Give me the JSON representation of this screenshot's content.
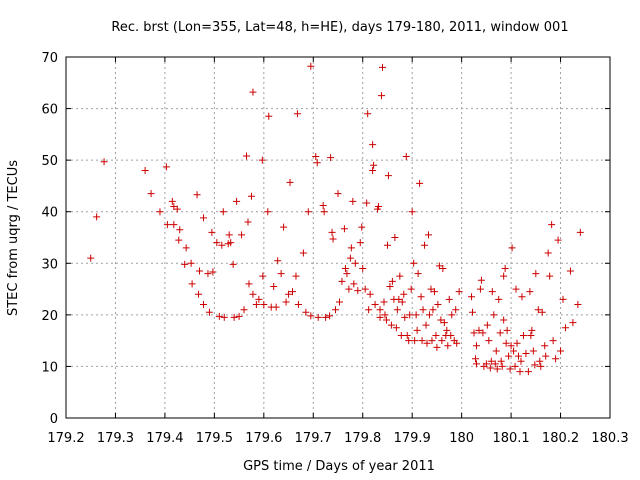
{
  "chart_data": {
    "type": "scatter",
    "title": "Rec. brst (Lon=355, Lat=48, h=HE), days 179-180, 2011, window 001",
    "xlabel": "GPS time / Days of year 2011",
    "ylabel": "STEC from uqrg / TECUs",
    "xlim": [
      179.2,
      180.3
    ],
    "ylim": [
      0,
      70
    ],
    "xticks": [
      179.2,
      179.3,
      179.4,
      179.5,
      179.6,
      179.7,
      179.8,
      179.9,
      180,
      180.1,
      180.2,
      180.3
    ],
    "xtick_labels": [
      "179.2",
      "179.3",
      "179.4",
      "179.5",
      "179.6",
      "179.7",
      "179.8",
      "179.9",
      "180",
      "180.1",
      "180.2",
      "180.3"
    ],
    "yticks": [
      0,
      10,
      20,
      30,
      40,
      50,
      60,
      70
    ],
    "ytick_labels": [
      "0",
      "10",
      "20",
      "30",
      "40",
      "50",
      "60",
      "70"
    ],
    "grid": true,
    "marker": "+",
    "color": "#cc0000",
    "series": [
      {
        "points": [
          [
            179.25,
            31
          ],
          [
            179.262,
            39
          ],
          [
            179.277,
            49.7
          ],
          [
            179.36,
            48
          ],
          [
            179.372,
            43.5
          ],
          [
            179.39,
            40
          ],
          [
            179.403,
            48.7
          ],
          [
            179.405,
            37.5
          ],
          [
            179.415,
            42
          ],
          [
            179.418,
            37.5
          ],
          [
            179.418,
            41
          ],
          [
            179.425,
            40.5
          ],
          [
            179.428,
            34.5
          ],
          [
            179.43,
            36.5
          ],
          [
            179.443,
            33
          ],
          [
            179.44,
            29.8
          ],
          [
            179.453,
            30
          ],
          [
            179.455,
            26
          ],
          [
            179.465,
            43.3
          ],
          [
            179.468,
            24
          ],
          [
            179.47,
            28.5
          ],
          [
            179.478,
            38.8
          ],
          [
            179.478,
            22
          ],
          [
            179.487,
            28
          ],
          [
            179.49,
            20.5
          ],
          [
            179.495,
            36
          ],
          [
            179.497,
            28.3
          ],
          [
            179.505,
            34
          ],
          [
            179.51,
            19.7
          ],
          [
            179.515,
            33.5
          ],
          [
            179.518,
            40
          ],
          [
            179.52,
            19.5
          ],
          [
            179.528,
            33.8
          ],
          [
            179.53,
            35.5
          ],
          [
            179.533,
            34
          ],
          [
            179.538,
            29.8
          ],
          [
            179.54,
            19.5
          ],
          [
            179.545,
            42
          ],
          [
            179.55,
            19.7
          ],
          [
            179.555,
            35.5
          ],
          [
            179.56,
            21
          ],
          [
            179.565,
            50.8
          ],
          [
            179.568,
            38
          ],
          [
            179.57,
            26
          ],
          [
            179.575,
            43
          ],
          [
            179.578,
            63.2
          ],
          [
            179.578,
            24
          ],
          [
            179.585,
            22
          ],
          [
            179.59,
            23
          ],
          [
            179.597,
            50
          ],
          [
            179.598,
            27.5
          ],
          [
            179.6,
            22
          ],
          [
            179.608,
            40
          ],
          [
            179.61,
            58.5
          ],
          [
            179.615,
            21.5
          ],
          [
            179.62,
            25.5
          ],
          [
            179.625,
            21.5
          ],
          [
            179.628,
            30.5
          ],
          [
            179.635,
            28
          ],
          [
            179.64,
            37
          ],
          [
            179.645,
            22.5
          ],
          [
            179.65,
            24
          ],
          [
            179.653,
            45.7
          ],
          [
            179.658,
            24.5
          ],
          [
            179.665,
            27.5
          ],
          [
            179.668,
            59
          ],
          [
            179.67,
            22
          ],
          [
            179.68,
            32
          ],
          [
            179.685,
            20.5
          ],
          [
            179.69,
            40
          ],
          [
            179.695,
            68.2
          ],
          [
            179.695,
            19.8
          ],
          [
            179.705,
            50.7
          ],
          [
            179.708,
            49.5
          ],
          [
            179.71,
            19.5
          ],
          [
            179.72,
            41.2
          ],
          [
            179.722,
            40
          ],
          [
            179.725,
            19.5
          ],
          [
            179.733,
            19.8
          ],
          [
            179.735,
            50.5
          ],
          [
            179.738,
            36
          ],
          [
            179.74,
            34.7
          ],
          [
            179.745,
            21
          ],
          [
            179.75,
            43.5
          ],
          [
            179.753,
            22.5
          ],
          [
            179.758,
            26.5
          ],
          [
            179.763,
            36.7
          ],
          [
            179.765,
            29
          ],
          [
            179.768,
            28
          ],
          [
            179.772,
            25
          ],
          [
            179.775,
            31
          ],
          [
            179.777,
            33
          ],
          [
            179.78,
            42
          ],
          [
            179.782,
            26
          ],
          [
            179.785,
            30
          ],
          [
            179.79,
            24.7
          ],
          [
            179.795,
            34
          ],
          [
            179.798,
            37
          ],
          [
            179.8,
            29
          ],
          [
            179.805,
            25
          ],
          [
            179.808,
            41.7
          ],
          [
            179.81,
            59
          ],
          [
            179.812,
            21
          ],
          [
            179.815,
            24
          ],
          [
            179.82,
            48
          ],
          [
            179.82,
            53
          ],
          [
            179.822,
            49
          ],
          [
            179.825,
            22
          ],
          [
            179.83,
            40.5
          ],
          [
            179.832,
            41
          ],
          [
            179.835,
            21
          ],
          [
            179.835,
            19.5
          ],
          [
            179.838,
            62.5
          ],
          [
            179.84,
            68
          ],
          [
            179.843,
            22.5
          ],
          [
            179.845,
            20
          ],
          [
            179.848,
            19
          ],
          [
            179.85,
            33.5
          ],
          [
            179.852,
            47
          ],
          [
            179.855,
            25.5
          ],
          [
            179.858,
            18
          ],
          [
            179.86,
            26.5
          ],
          [
            179.863,
            23
          ],
          [
            179.865,
            35
          ],
          [
            179.868,
            17.5
          ],
          [
            179.87,
            21
          ],
          [
            179.873,
            23
          ],
          [
            179.875,
            27.5
          ],
          [
            179.878,
            16
          ],
          [
            179.88,
            22.5
          ],
          [
            179.883,
            24
          ],
          [
            179.885,
            19.5
          ],
          [
            179.888,
            50.7
          ],
          [
            179.89,
            16
          ],
          [
            179.893,
            15
          ],
          [
            179.895,
            20
          ],
          [
            179.898,
            25
          ],
          [
            179.9,
            40
          ],
          [
            179.903,
            30
          ],
          [
            179.905,
            15
          ],
          [
            179.908,
            20
          ],
          [
            179.91,
            17
          ],
          [
            179.912,
            28
          ],
          [
            179.915,
            45.5
          ],
          [
            179.918,
            23.5
          ],
          [
            179.92,
            15
          ],
          [
            179.922,
            21
          ],
          [
            179.925,
            33.5
          ],
          [
            179.928,
            18
          ],
          [
            179.93,
            14.5
          ],
          [
            179.933,
            35.5
          ],
          [
            179.935,
            20
          ],
          [
            179.938,
            25
          ],
          [
            179.94,
            15
          ],
          [
            179.942,
            21
          ],
          [
            179.945,
            24.5
          ],
          [
            179.948,
            16
          ],
          [
            179.95,
            13.7
          ],
          [
            179.952,
            22
          ],
          [
            179.955,
            29.5
          ],
          [
            179.958,
            19
          ],
          [
            179.96,
            15
          ],
          [
            179.962,
            29
          ],
          [
            179.965,
            18.5
          ],
          [
            179.968,
            16
          ],
          [
            179.97,
            17
          ],
          [
            179.972,
            14
          ],
          [
            179.975,
            23
          ],
          [
            179.978,
            16
          ],
          [
            179.98,
            20
          ],
          [
            179.985,
            15
          ],
          [
            179.988,
            21
          ],
          [
            179.99,
            14.5
          ],
          [
            179.995,
            24.5
          ],
          [
            180.02,
            23.5
          ],
          [
            180.022,
            20.5
          ],
          [
            180.025,
            16.5
          ],
          [
            180.028,
            11.5
          ],
          [
            180.03,
            14
          ],
          [
            180.03,
            10.5
          ],
          [
            180.035,
            17
          ],
          [
            180.038,
            25
          ],
          [
            180.04,
            26.7
          ],
          [
            180.043,
            16.5
          ],
          [
            180.045,
            10
          ],
          [
            180.05,
            10.5
          ],
          [
            180.052,
            18
          ],
          [
            180.055,
            15
          ],
          [
            180.058,
            9.7
          ],
          [
            180.06,
            11
          ],
          [
            180.062,
            24.5
          ],
          [
            180.065,
            20
          ],
          [
            180.068,
            10.5
          ],
          [
            180.07,
            13
          ],
          [
            180.072,
            9.5
          ],
          [
            180.075,
            23
          ],
          [
            180.078,
            16.5
          ],
          [
            180.08,
            11
          ],
          [
            180.082,
            10
          ],
          [
            180.085,
            19
          ],
          [
            180.085,
            27.5
          ],
          [
            180.088,
            29
          ],
          [
            180.09,
            14.5
          ],
          [
            180.092,
            17
          ],
          [
            180.095,
            12
          ],
          [
            180.098,
            9.5
          ],
          [
            180.1,
            14
          ],
          [
            180.102,
            33
          ],
          [
            180.105,
            13
          ],
          [
            180.108,
            10
          ],
          [
            180.11,
            25
          ],
          [
            180.112,
            14.5
          ],
          [
            180.115,
            12
          ],
          [
            180.118,
            9
          ],
          [
            180.12,
            11
          ],
          [
            180.122,
            23.5
          ],
          [
            180.125,
            16
          ],
          [
            180.13,
            12.5
          ],
          [
            180.135,
            9
          ],
          [
            180.138,
            24.5
          ],
          [
            180.14,
            16
          ],
          [
            180.142,
            17
          ],
          [
            180.145,
            13
          ],
          [
            180.148,
            10.3
          ],
          [
            180.15,
            28
          ],
          [
            180.155,
            21
          ],
          [
            180.158,
            11
          ],
          [
            180.16,
            10
          ],
          [
            180.163,
            20.5
          ],
          [
            180.168,
            14
          ],
          [
            180.17,
            12
          ],
          [
            180.175,
            32
          ],
          [
            180.178,
            27.5
          ],
          [
            180.182,
            37.5
          ],
          [
            180.185,
            15
          ],
          [
            180.19,
            11.5
          ],
          [
            180.195,
            34.5
          ],
          [
            180.2,
            13
          ],
          [
            180.205,
            23
          ],
          [
            180.21,
            17.5
          ],
          [
            180.22,
            28.5
          ],
          [
            180.225,
            18.5
          ],
          [
            180.235,
            22
          ],
          [
            180.24,
            36
          ]
        ]
      }
    ]
  }
}
